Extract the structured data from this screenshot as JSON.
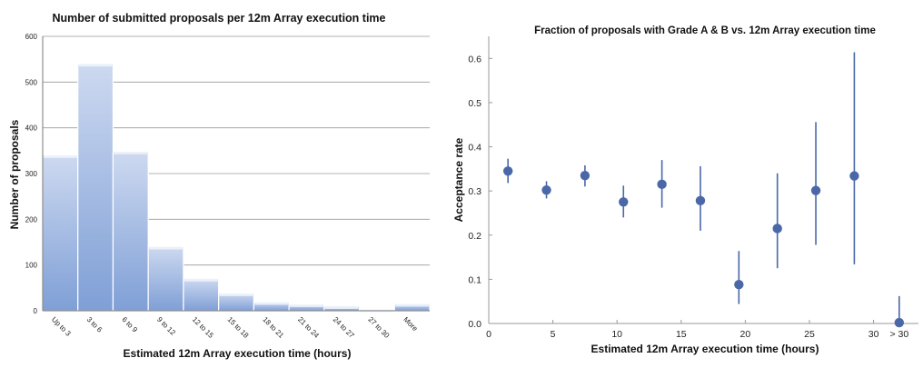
{
  "chart_data": [
    {
      "type": "bar",
      "title": "Number of submitted proposals per 12m Array execution time",
      "xlabel": "Estimated 12m Array execution time (hours)",
      "ylabel": "Number of proposals",
      "categories": [
        "Up to 3",
        "3 to 6",
        "6 to 9",
        "9 to 12",
        "12 to 15",
        "15 to 18",
        "18 to 21",
        "21 to 24",
        "24 to 27",
        "27 to 30",
        "More"
      ],
      "values": [
        340,
        540,
        348,
        140,
        70,
        38,
        19,
        14,
        10,
        3,
        15
      ],
      "yticks": [
        0,
        100,
        200,
        300,
        400,
        500,
        600
      ],
      "ylim": [
        0,
        600
      ],
      "grid": true,
      "bar_color": "#8fabdc"
    },
    {
      "type": "scatter",
      "title": "Fraction of proposals with Grade A & B vs. 12m Array execution time",
      "xlabel": "Estimated 12m Array execution time (hours)",
      "ylabel": "Acceptance rate",
      "x": [
        1.5,
        4.5,
        7.5,
        10.5,
        13.5,
        16.5,
        19.5,
        22.5,
        25.5,
        28.5,
        32
      ],
      "y": [
        0.345,
        0.302,
        0.335,
        0.275,
        0.315,
        0.278,
        0.088,
        0.215,
        0.301,
        0.334,
        0.002
      ],
      "err_low": [
        0.318,
        0.283,
        0.31,
        0.24,
        0.262,
        0.21,
        0.044,
        0.125,
        0.178,
        0.134,
        0.0
      ],
      "err_high": [
        0.373,
        0.322,
        0.358,
        0.312,
        0.37,
        0.356,
        0.164,
        0.34,
        0.456,
        0.614,
        0.062
      ],
      "xticks": [
        0,
        5,
        10,
        15,
        20,
        25,
        30
      ],
      "xtick_extra": "> 30",
      "yticks": [
        "0.0",
        "0.1",
        "0.2",
        "0.3",
        "0.4",
        "0.5",
        "0.6"
      ],
      "xlim": [
        0,
        33.5
      ],
      "ylim": [
        0,
        0.65
      ],
      "grid": false,
      "marker_color": "#4a68a8"
    }
  ]
}
